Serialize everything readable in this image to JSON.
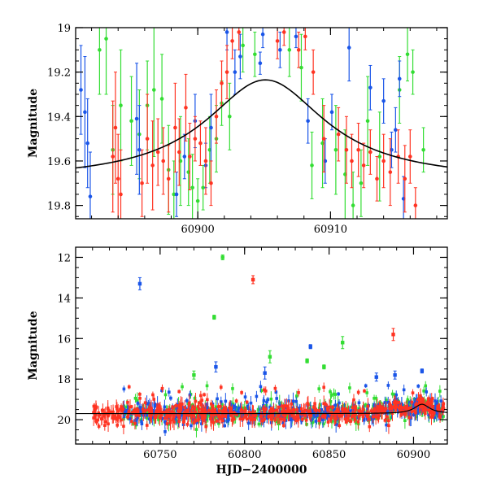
{
  "chart_data": [
    {
      "type": "scatter",
      "xlim": [
        60890.8,
        60918.8
      ],
      "ylim": [
        19.86,
        19.0
      ],
      "y_inverted": true,
      "xticks": [
        60900,
        60910
      ],
      "yticks": [
        19,
        19.2,
        19.4,
        19.6,
        19.8
      ],
      "ylabel": "Magnitude",
      "xlabel": "",
      "grid": false,
      "legend": "none",
      "colors": {
        "blue": "#1a55e8",
        "green": "#33dd33",
        "red": "#ff3322",
        "model": "#000000"
      },
      "model_curve": {
        "type": "line",
        "baseline": 19.69,
        "peak_x": 60905.1,
        "peak_y": 19.235,
        "width_days": 5.5
      },
      "series": [
        {
          "color": "blue",
          "points": [
            [
              60891.2,
              19.28,
              0.2
            ],
            [
              60891.5,
              19.38,
              0.25
            ],
            [
              60891.7,
              19.52,
              0.2
            ],
            [
              60891.9,
              19.76,
              0.2
            ],
            [
              60895.4,
              19.41,
              0.25
            ],
            [
              60895.6,
              19.55,
              0.2
            ],
            [
              60898.4,
              19.75,
              0.1
            ],
            [
              60899.0,
              19.58,
              0.1
            ],
            [
              60899.8,
              19.42,
              0.12
            ],
            [
              60900.6,
              19.62,
              0.1
            ],
            [
              60901.0,
              19.45,
              0.15
            ],
            [
              60902.2,
              19.02,
              0.08
            ],
            [
              60902.8,
              19.2,
              0.1
            ],
            [
              60903.2,
              19.13,
              0.1
            ],
            [
              60904.7,
              19.16,
              0.05
            ],
            [
              60904.9,
              19.03,
              0.06
            ],
            [
              60906.2,
              19.1,
              0.08
            ],
            [
              60907.4,
              19.04,
              0.05
            ],
            [
              60908.3,
              19.42,
              0.1
            ],
            [
              60909.6,
              19.6,
              0.1
            ],
            [
              60910.1,
              19.38,
              0.08
            ],
            [
              60911.4,
              19.09,
              0.15
            ],
            [
              60913.0,
              19.27,
              0.1
            ],
            [
              60914.0,
              19.33,
              0.1
            ],
            [
              60914.6,
              19.55,
              0.08
            ],
            [
              60914.9,
              19.46,
              0.1
            ],
            [
              60915.2,
              19.23,
              0.08
            ],
            [
              60915.5,
              19.77,
              0.1
            ]
          ]
        },
        {
          "color": "green",
          "points": [
            [
              60892.6,
              19.1,
              0.2
            ],
            [
              60893.1,
              19.05,
              0.25
            ],
            [
              60893.6,
              19.55,
              0.2
            ],
            [
              60894.2,
              19.35,
              0.25
            ],
            [
              60895.0,
              19.42,
              0.2
            ],
            [
              60895.6,
              19.48,
              0.2
            ],
            [
              60896.2,
              19.35,
              0.2
            ],
            [
              60896.7,
              19.28,
              0.3
            ],
            [
              60897.3,
              19.32,
              0.2
            ],
            [
              60897.8,
              19.64,
              0.2
            ],
            [
              60898.2,
              19.75,
              0.15
            ],
            [
              60898.7,
              19.6,
              0.2
            ],
            [
              60899.3,
              19.65,
              0.15
            ],
            [
              60899.6,
              19.72,
              0.15
            ],
            [
              60900.0,
              19.78,
              0.1
            ],
            [
              60900.4,
              19.72,
              0.1
            ],
            [
              60900.9,
              19.55,
              0.15
            ],
            [
              60901.4,
              19.5,
              0.15
            ],
            [
              60901.8,
              19.34,
              0.1
            ],
            [
              60902.4,
              19.4,
              0.15
            ],
            [
              60903.4,
              19.08,
              0.12
            ],
            [
              60904.3,
              19.12,
              0.1
            ],
            [
              60906.9,
              19.1,
              0.12
            ],
            [
              60907.8,
              19.18,
              0.15
            ],
            [
              60908.6,
              19.62,
              0.15
            ],
            [
              60909.4,
              19.52,
              0.2
            ],
            [
              60910.4,
              19.55,
              0.2
            ],
            [
              60911.1,
              19.66,
              0.2
            ],
            [
              60911.7,
              19.8,
              0.15
            ],
            [
              60912.3,
              19.7,
              0.15
            ],
            [
              60912.8,
              19.42,
              0.2
            ],
            [
              60913.7,
              19.58,
              0.2
            ],
            [
              60915.2,
              19.28,
              0.15
            ],
            [
              60915.8,
              19.12,
              0.12
            ],
            [
              60916.2,
              19.2,
              0.1
            ],
            [
              60917.0,
              19.55,
              0.1
            ]
          ]
        },
        {
          "color": "red",
          "points": [
            [
              60893.6,
              19.58,
              0.25
            ],
            [
              60893.8,
              19.45,
              0.25
            ],
            [
              60894.0,
              19.68,
              0.2
            ],
            [
              60894.2,
              19.75,
              0.2
            ],
            [
              60895.8,
              19.7,
              0.15
            ],
            [
              60896.2,
              19.5,
              0.2
            ],
            [
              60896.6,
              19.62,
              0.2
            ],
            [
              60897.0,
              19.56,
              0.15
            ],
            [
              60897.4,
              19.6,
              0.15
            ],
            [
              60897.8,
              19.68,
              0.15
            ],
            [
              60898.3,
              19.45,
              0.2
            ],
            [
              60898.6,
              19.56,
              0.15
            ],
            [
              60899.1,
              19.36,
              0.15
            ],
            [
              60899.4,
              19.58,
              0.15
            ],
            [
              60899.8,
              19.5,
              0.1
            ],
            [
              60900.2,
              19.52,
              0.1
            ],
            [
              60900.6,
              19.6,
              0.15
            ],
            [
              60901.0,
              19.7,
              0.1
            ],
            [
              60901.4,
              19.4,
              0.12
            ],
            [
              60901.8,
              19.25,
              0.1
            ],
            [
              60902.2,
              19.2,
              0.12
            ],
            [
              60902.6,
              19.06,
              0.08
            ],
            [
              60903.1,
              19.02,
              0.08
            ],
            [
              60906.0,
              19.06,
              0.08
            ],
            [
              60906.5,
              19.02,
              0.06
            ],
            [
              60907.6,
              19.1,
              0.08
            ],
            [
              60908.1,
              19.04,
              0.06
            ],
            [
              60908.7,
              19.2,
              0.1
            ],
            [
              60909.5,
              19.5,
              0.15
            ],
            [
              60910.6,
              19.48,
              0.12
            ],
            [
              60911.2,
              19.55,
              0.15
            ],
            [
              60911.6,
              19.6,
              0.12
            ],
            [
              60912.1,
              19.55,
              0.12
            ],
            [
              60912.5,
              19.62,
              0.1
            ],
            [
              60913.0,
              19.56,
              0.1
            ],
            [
              60913.5,
              19.68,
              0.1
            ],
            [
              60914.0,
              19.6,
              0.12
            ],
            [
              60914.5,
              19.65,
              0.15
            ],
            [
              60915.1,
              19.58,
              0.12
            ],
            [
              60915.6,
              19.68,
              0.15
            ],
            [
              60916.0,
              19.58,
              0.12
            ],
            [
              60916.4,
              19.8,
              0.08
            ]
          ]
        }
      ]
    },
    {
      "type": "scatter",
      "xlim": [
        60700,
        60920
      ],
      "ylim": [
        21.2,
        11.5
      ],
      "y_inverted": true,
      "xticks": [
        60750,
        60800,
        60850,
        60900
      ],
      "yticks": [
        12,
        14,
        16,
        18,
        20
      ],
      "ylabel": "Magnitude",
      "xlabel": "HJD−2400000",
      "grid": false,
      "legend": "none",
      "colors": {
        "blue": "#1a55e8",
        "green": "#33dd33",
        "red": "#ff3322",
        "model": "#000000"
      },
      "x_data_start": 60728,
      "x_data_end": 60918,
      "red_data_start": 60710,
      "baseline_mag": 19.7,
      "outliers": [
        {
          "color": "blue",
          "x": 60738,
          "y": 13.3,
          "err": 0.3
        },
        {
          "color": "green",
          "x": 60787,
          "y": 12.0,
          "err": 0.12
        },
        {
          "color": "red",
          "x": 60805,
          "y": 13.1,
          "err": 0.2
        },
        {
          "color": "green",
          "x": 60782,
          "y": 14.95,
          "err": 0.1
        },
        {
          "color": "red",
          "x": 60888,
          "y": 15.8,
          "err": 0.3
        },
        {
          "color": "green",
          "x": 60858,
          "y": 16.2,
          "err": 0.3
        },
        {
          "color": "blue",
          "x": 60839,
          "y": 16.4,
          "err": 0.1
        },
        {
          "color": "green",
          "x": 60815,
          "y": 16.9,
          "err": 0.3
        },
        {
          "color": "green",
          "x": 60837,
          "y": 17.1,
          "err": 0.1
        },
        {
          "color": "blue",
          "x": 60783,
          "y": 17.4,
          "err": 0.25
        },
        {
          "color": "green",
          "x": 60847,
          "y": 17.4,
          "err": 0.1
        },
        {
          "color": "blue",
          "x": 60812,
          "y": 17.7,
          "err": 0.3
        },
        {
          "color": "blue",
          "x": 60878,
          "y": 17.9,
          "err": 0.2
        },
        {
          "color": "green",
          "x": 60770,
          "y": 17.8,
          "err": 0.2
        },
        {
          "color": "blue",
          "x": 60905,
          "y": 17.6,
          "err": 0.1
        },
        {
          "color": "blue",
          "x": 60889,
          "y": 17.8,
          "err": 0.2
        }
      ]
    }
  ]
}
